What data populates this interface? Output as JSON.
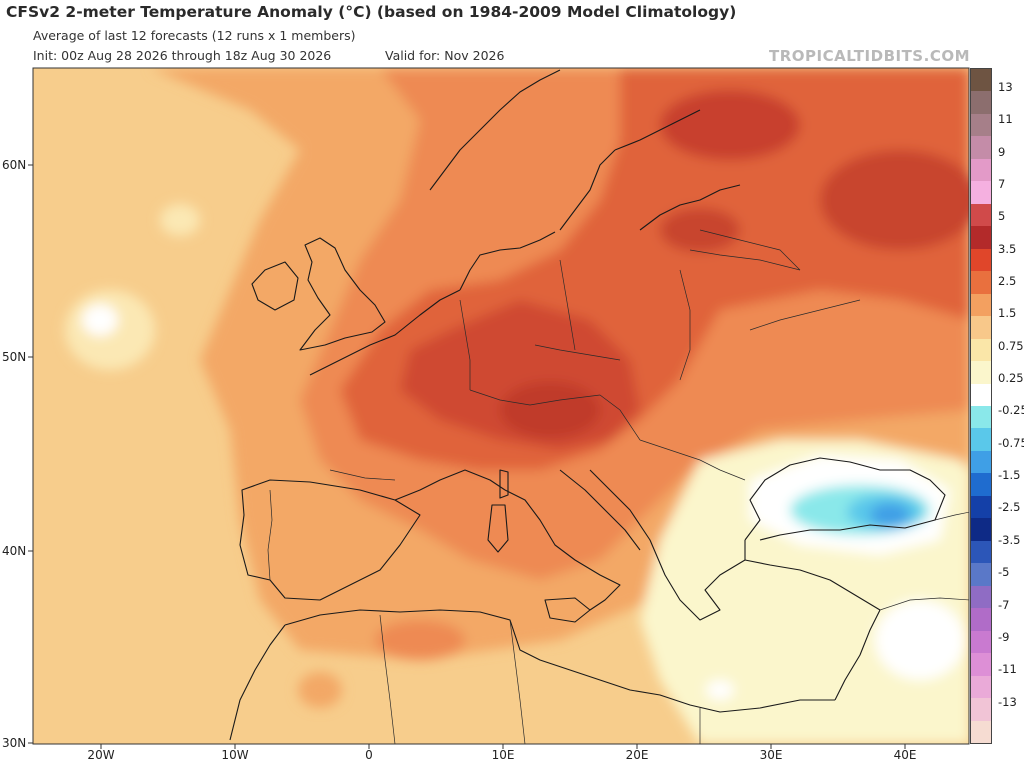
{
  "header": {
    "title": "CFSv2 2-meter Temperature Anomaly (°C) (based on 1984-2009 Model Climatology)",
    "subtitle": "Average of last 12 forecasts (12 runs x 1 members)",
    "init": "Init: 00z Aug 28 2026 through 18z Aug 30 2026",
    "valid": "Valid for: Nov 2026",
    "brand": "TROPICALTIDBITS.COM"
  },
  "axes": {
    "lat_labels": [
      "60N",
      "50N",
      "40N",
      "30N"
    ],
    "lon_labels": [
      "20W",
      "10W",
      "0",
      "10E",
      "20E",
      "30E",
      "40E"
    ]
  },
  "colorbar": {
    "labels": [
      "13",
      "11",
      "9",
      "7",
      "5",
      "3.5",
      "2.5",
      "1.5",
      "0.75",
      "0.25",
      "-0.25",
      "-0.75",
      "-1.5",
      "-2.5",
      "-3.5",
      "-5",
      "-7",
      "-9",
      "-11",
      "-13"
    ],
    "colors": [
      "#6e5442",
      "#8c6e6e",
      "#a67f89",
      "#c48ca8",
      "#e39ac8",
      "#f5b0e0",
      "#d04a4a",
      "#b32a2a",
      "#e0462a",
      "#e9703e",
      "#f3a060",
      "#f8c88a",
      "#fae6a8",
      "#fbf6cc",
      "#ffffff",
      "#8ae8ea",
      "#5ac8ea",
      "#3f9fe6",
      "#1f6ccf",
      "#1440a8",
      "#0e2a86",
      "#2c56b8",
      "#5a78c8",
      "#8f6cc4",
      "#b06cc8",
      "#c97ad0",
      "#dd8fd6",
      "#eaaad8",
      "#f1c4d6",
      "#f6dcd2"
    ]
  }
}
